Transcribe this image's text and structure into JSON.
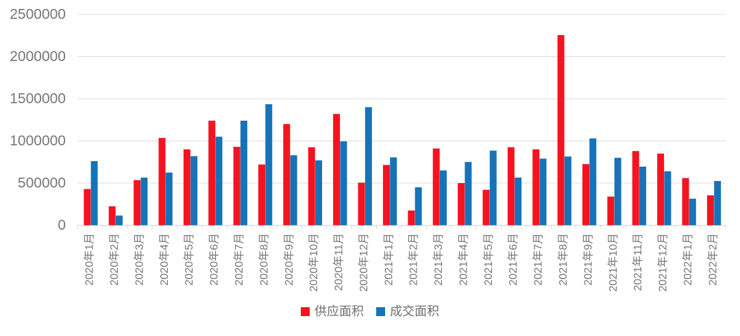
{
  "chart_data": {
    "type": "bar",
    "title": "",
    "xlabel": "",
    "ylabel": "",
    "grid": true,
    "legend_position": "bottom",
    "ylim": [
      0,
      2500000
    ],
    "ytick_step": 500000,
    "ytick_labels": [
      "0",
      "500000",
      "1000000",
      "1500000",
      "2000000",
      "2500000"
    ],
    "categories": [
      "2020年1月",
      "2020年2月",
      "2020年3月",
      "2020年4月",
      "2020年5月",
      "2020年6月",
      "2020年7月",
      "2020年8月",
      "2020年9月",
      "2020年10月",
      "2020年11月",
      "2020年12月",
      "2021年1月",
      "2021年2月",
      "2021年3月",
      "2021年4月",
      "2021年5月",
      "2021年6月",
      "2021年7月",
      "2021年8月",
      "2021年9月",
      "2021年10月",
      "2021年11月",
      "2021年12月",
      "2022年1月",
      "2022年2月"
    ],
    "series": [
      {
        "name": "供应面积",
        "key": "supply",
        "color": "#f6131f",
        "values": [
          430000,
          225000,
          535000,
          1035000,
          900000,
          1240000,
          930000,
          720000,
          1200000,
          925000,
          1320000,
          505000,
          715000,
          175000,
          910000,
          500000,
          420000,
          925000,
          900000,
          2255000,
          725000,
          340000,
          880000,
          850000,
          560000,
          355000
        ]
      },
      {
        "name": "成交面积",
        "key": "transaction",
        "color": "#1673b9",
        "values": [
          760000,
          115000,
          565000,
          625000,
          820000,
          1050000,
          1240000,
          1435000,
          830000,
          770000,
          995000,
          1400000,
          805000,
          450000,
          650000,
          750000,
          885000,
          565000,
          790000,
          815000,
          1030000,
          800000,
          695000,
          640000,
          315000,
          525000
        ]
      }
    ]
  },
  "legend": {
    "items": [
      {
        "label": "供应面积",
        "key": "supply",
        "color": "#f6131f"
      },
      {
        "label": "成交面积",
        "key": "transaction",
        "color": "#1673b9"
      }
    ]
  },
  "colors": {
    "background": "#ffffff",
    "gridline": "#dcdcdc",
    "axis_line": "#d4d4d4",
    "axis_text": "#757575",
    "legend_text": "#6e6e6e"
  }
}
